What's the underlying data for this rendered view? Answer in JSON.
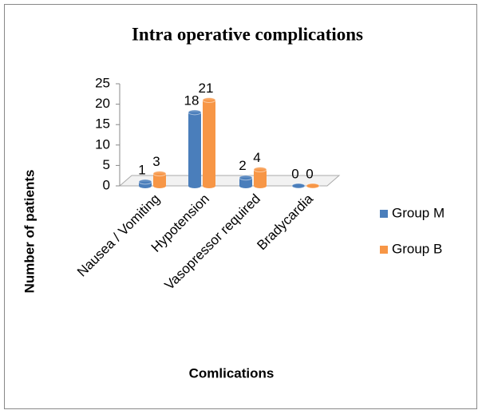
{
  "chart_data": {
    "type": "bar",
    "title": "Intra operative complications",
    "x_label": "Comlications",
    "y_label": "Number of patients",
    "categories": [
      "Nausea / Vomiting",
      "Hypotension",
      "Vasopressor required",
      "Bradycardia"
    ],
    "series": [
      {
        "name": "Group M",
        "color": "#4a7ebb",
        "values": [
          1,
          18,
          2,
          0
        ]
      },
      {
        "name": "Group B",
        "color": "#f79646",
        "values": [
          3,
          21,
          4,
          0
        ]
      }
    ],
    "ylim": [
      0,
      25
    ],
    "yticks": [
      0,
      5,
      10,
      15,
      20,
      25
    ],
    "legend": "right"
  }
}
